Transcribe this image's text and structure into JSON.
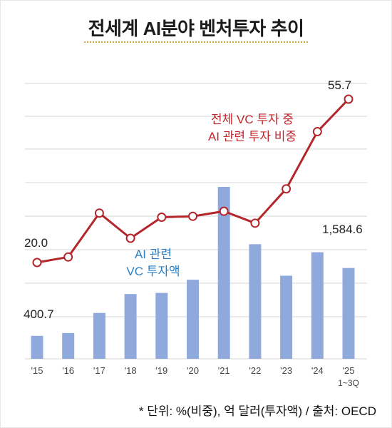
{
  "title": "전세계 AI분야 벤처투자 추이",
  "footnote": "* 단위: %(비중), 억 달러(투자액) / 출처: OECD",
  "colors": {
    "bar": "#8fa9dc",
    "line": "#b3262b",
    "line_label": "#c0262c",
    "bar_label": "#2a7fc4",
    "grid": "#d5d5d5",
    "text": "#222222"
  },
  "chart_data": {
    "type": "bar+line",
    "categories": [
      "'15",
      "'16",
      "'17",
      "'18",
      "'19",
      "'20",
      "'21",
      "'22",
      "'23",
      "'24",
      "'25"
    ],
    "last_category_sub": "1~3Q",
    "series": [
      {
        "name": "AI 관련 VC 투자액",
        "label_lines": [
          "AI 관련",
          "VC 투자액"
        ],
        "type": "bar",
        "values": [
          400.7,
          450,
          800,
          1130,
          1150,
          1380,
          3000,
          2000,
          1450,
          1860,
          1584.6
        ],
        "data_labels": {
          "0": "400.7",
          "10": "1,584.6"
        }
      },
      {
        "name": "전체 VC 투자 중 AI 관련 투자 비중",
        "label_lines": [
          "전체 VC 투자 중",
          "AI 관련 투자 비중"
        ],
        "type": "line",
        "values": [
          20.0,
          21.2,
          30.8,
          25.3,
          29.9,
          30.1,
          31.2,
          28.6,
          36.1,
          48.6,
          55.7
        ],
        "data_labels": {
          "0": "20.0",
          "10": "55.7"
        }
      }
    ],
    "grid": true
  }
}
